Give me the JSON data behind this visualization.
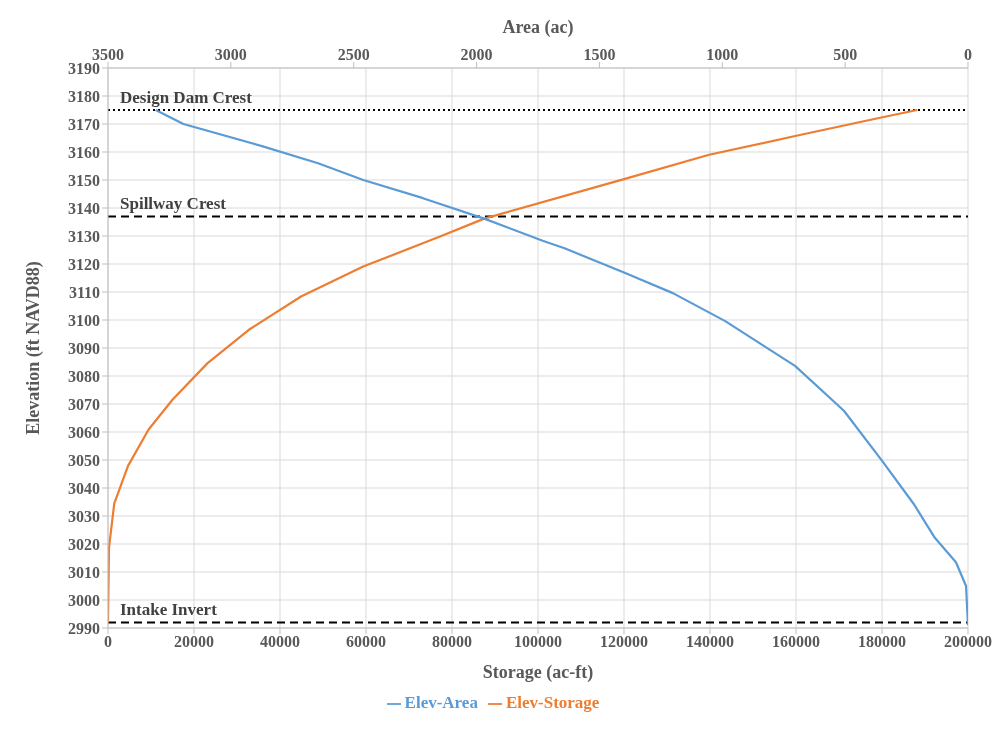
{
  "chart_data": {
    "type": "line",
    "xlabel": "Storage (ac-ft)",
    "x2label": "Area (ac)",
    "ylabel": "Elevation (ft NAVD88)",
    "xlim": [
      0,
      200000
    ],
    "xticks": [
      0,
      20000,
      40000,
      60000,
      80000,
      100000,
      120000,
      140000,
      160000,
      180000,
      200000
    ],
    "x2lim": [
      3500,
      0
    ],
    "x2ticks": [
      3500,
      3000,
      2500,
      2000,
      1500,
      1000,
      500,
      0
    ],
    "ylim": [
      2990,
      3190
    ],
    "yticks": [
      2990,
      3000,
      3010,
      3020,
      3030,
      3040,
      3050,
      3060,
      3070,
      3080,
      3090,
      3100,
      3110,
      3120,
      3130,
      3140,
      3150,
      3160,
      3170,
      3180,
      3190
    ],
    "grid": true,
    "legend": "bottom",
    "series": [
      {
        "name": "Elev-Storage",
        "color": "#ed7d31",
        "x": [
          0,
          233,
          1450,
          4660,
          9440,
          15040,
          23160,
          32760,
          44890,
          59350,
          77070,
          87500,
          120000,
          139800,
          159800,
          180100,
          188200
        ],
        "values": [
          2992,
          3018.7,
          3034.4,
          3047.9,
          3060.9,
          3071.6,
          3084.6,
          3096.5,
          3108.4,
          3119.1,
          3129.7,
          3136.2,
          3150.3,
          3159,
          3165.7,
          3172.4,
          3175
        ]
      },
      {
        "name": "Elev-Area",
        "color": "#5b9bd5",
        "axis": "x2",
        "x": [
          3306,
          3193,
          2870,
          2645,
          2461,
          2221,
          1969,
          1731,
          1642,
          1400,
          1201,
          988,
          704,
          505,
          348,
          220,
          135,
          49,
          8,
          0
        ],
        "values": [
          3175,
          3170,
          3162,
          3156,
          3150,
          3143.6,
          3136.2,
          3128.3,
          3125.6,
          3117,
          3109.6,
          3099.6,
          3083.6,
          3067.6,
          3049.5,
          3034.2,
          3022.2,
          3013.5,
          3005,
          2991
        ]
      }
    ],
    "ref_lines": [
      {
        "axis": "y",
        "value": 3175,
        "label": "Design Dam Crest",
        "color": "#000000",
        "line_style": "dotted"
      },
      {
        "axis": "y",
        "value": 3137,
        "label": "Spillway Crest",
        "color": "#000000",
        "line_style": "dashed"
      },
      {
        "axis": "y",
        "value": 2992,
        "label": "Intake Invert",
        "color": "#000000",
        "line_style": "dashed"
      }
    ]
  }
}
